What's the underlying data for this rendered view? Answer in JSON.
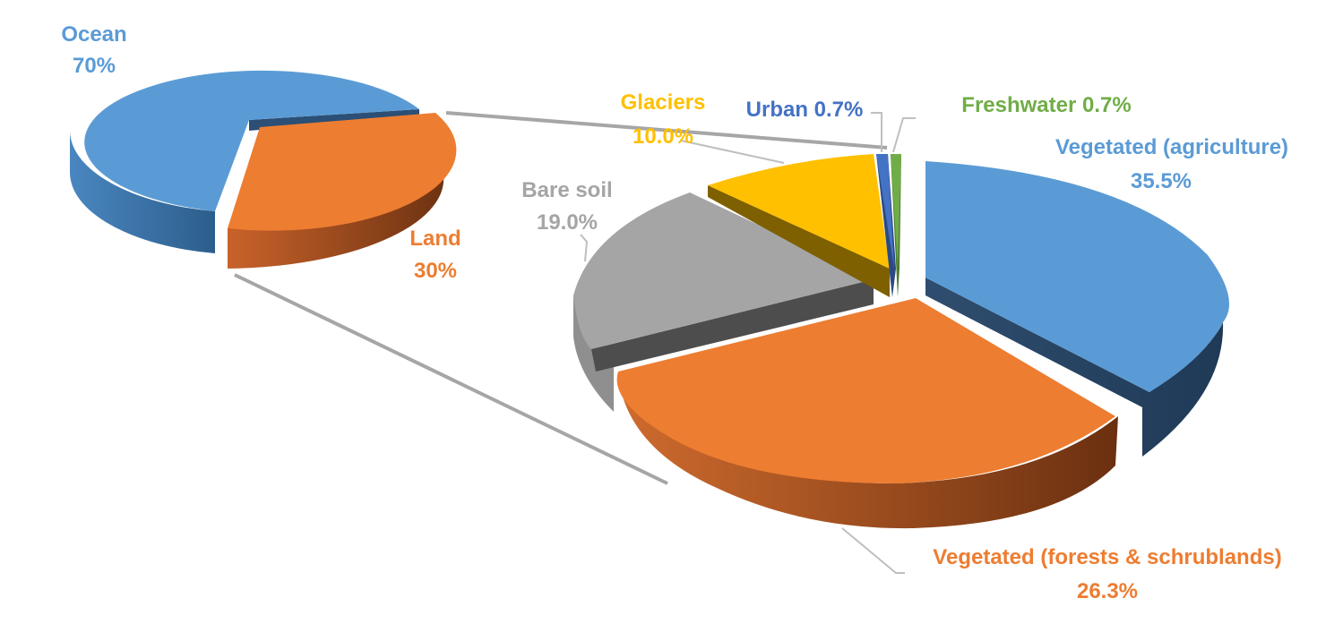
{
  "chart_data": [
    {
      "type": "pie",
      "title": "",
      "slices": [
        {
          "name": "Ocean",
          "value": 70,
          "value_label": "70%",
          "color": "#5b9bd5"
        },
        {
          "name": "Land",
          "value": 30,
          "value_label": "30%",
          "color": "#ed7d31"
        }
      ],
      "style": "3d-exploded",
      "legend": "none"
    },
    {
      "type": "pie",
      "title": "",
      "slices": [
        {
          "name": "Vegetated (agriculture)",
          "value": 35.5,
          "value_label": "35.5%",
          "color": "#5b9bd5"
        },
        {
          "name": "Vegetated (forests & schrublands)",
          "value": 26.3,
          "value_label": "26.3%",
          "color": "#ed7d31"
        },
        {
          "name": "Bare soil",
          "value": 19.0,
          "value_label": "19.0%",
          "color": "#a5a5a5"
        },
        {
          "name": "Glaciers",
          "value": 10.0,
          "value_label": "10.0%",
          "color": "#ffc000"
        },
        {
          "name": "Urban",
          "value": 0.7,
          "value_label": "0.7%",
          "color": "#4472c4"
        },
        {
          "name": "Freshwater",
          "value": 0.7,
          "value_label": "0.7%",
          "color": "#70ad47"
        }
      ],
      "style": "3d-exploded",
      "legend": "none"
    }
  ]
}
